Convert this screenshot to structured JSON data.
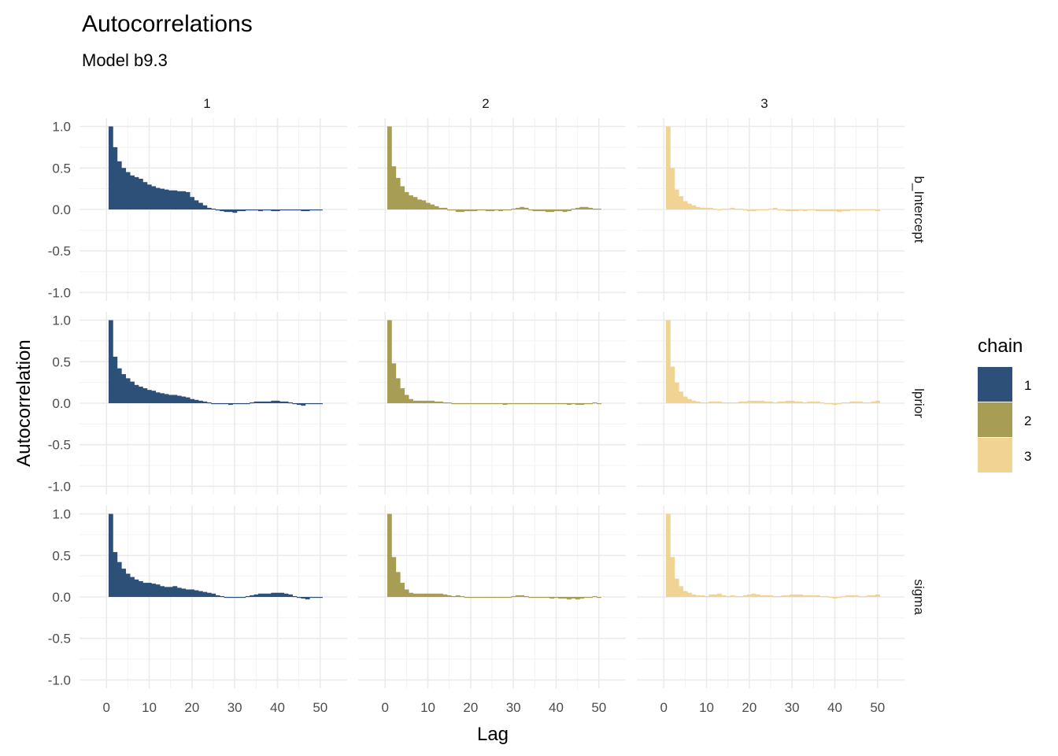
{
  "chart_data": {
    "type": "bar",
    "title": "Autocorrelations",
    "subtitle": "Model b9.3",
    "xlabel": "Lag",
    "ylabel": "Autocorrelation",
    "xlim": [
      0,
      50
    ],
    "ylim": [
      -1.0,
      1.0
    ],
    "x_ticks": [
      "0",
      "10",
      "20",
      "30",
      "40",
      "50"
    ],
    "y_ticks": [
      "1.0",
      "0.5",
      "0.0",
      "-0.5",
      "-1.0"
    ],
    "grid": true,
    "facet_columns": [
      "1",
      "2",
      "3"
    ],
    "facet_rows": [
      "b_Intercept",
      "lprior",
      "sigma"
    ],
    "legend": {
      "title": "chain",
      "position": "right",
      "entries": [
        {
          "label": "1",
          "color": "#2c5077"
        },
        {
          "label": "2",
          "color": "#a79d55"
        },
        {
          "label": "3",
          "color": "#f1d394"
        }
      ]
    },
    "lags": [
      1,
      2,
      3,
      4,
      5,
      6,
      7,
      8,
      9,
      10,
      11,
      12,
      13,
      14,
      15,
      16,
      17,
      18,
      19,
      20,
      21,
      22,
      23,
      24,
      25,
      26,
      27,
      28,
      29,
      30,
      31,
      32,
      33,
      34,
      35,
      36,
      37,
      38,
      39,
      40,
      41,
      42,
      43,
      44,
      45,
      46,
      47,
      48,
      49,
      50
    ],
    "panels": [
      {
        "row": "b_Intercept",
        "chain": "1",
        "values": [
          1.0,
          0.75,
          0.58,
          0.5,
          0.45,
          0.41,
          0.39,
          0.37,
          0.33,
          0.3,
          0.28,
          0.26,
          0.25,
          0.24,
          0.23,
          0.23,
          0.22,
          0.22,
          0.21,
          0.15,
          0.11,
          0.08,
          0.05,
          0.02,
          0.01,
          -0.01,
          -0.02,
          -0.03,
          -0.03,
          -0.04,
          -0.02,
          -0.02,
          -0.01,
          -0.01,
          -0.01,
          -0.02,
          -0.01,
          -0.01,
          -0.02,
          -0.02,
          -0.01,
          -0.01,
          -0.01,
          -0.01,
          -0.01,
          -0.02,
          -0.02,
          -0.01,
          -0.01,
          -0.01
        ]
      },
      {
        "row": "b_Intercept",
        "chain": "2",
        "values": [
          1.0,
          0.52,
          0.38,
          0.28,
          0.21,
          0.17,
          0.15,
          0.12,
          0.11,
          0.08,
          0.06,
          0.04,
          0.02,
          0.02,
          0.0,
          -0.01,
          -0.03,
          -0.03,
          -0.02,
          -0.02,
          -0.02,
          -0.01,
          -0.01,
          -0.02,
          -0.02,
          -0.01,
          -0.02,
          -0.01,
          -0.01,
          0.01,
          0.02,
          0.03,
          0.02,
          -0.01,
          -0.02,
          -0.02,
          -0.02,
          -0.03,
          -0.03,
          -0.02,
          -0.02,
          -0.03,
          -0.02,
          0.01,
          0.02,
          0.03,
          0.03,
          0.02,
          0.01,
          0.01
        ]
      },
      {
        "row": "b_Intercept",
        "chain": "3",
        "values": [
          1.0,
          0.5,
          0.24,
          0.16,
          0.1,
          0.07,
          0.05,
          0.03,
          0.02,
          0.02,
          0.02,
          0.01,
          0.0,
          0.01,
          0.01,
          0.02,
          0.01,
          0.01,
          -0.01,
          -0.02,
          -0.02,
          -0.01,
          -0.01,
          -0.01,
          0.01,
          0.02,
          0.0,
          -0.01,
          -0.02,
          -0.02,
          -0.02,
          -0.01,
          -0.02,
          -0.01,
          -0.01,
          -0.02,
          -0.02,
          -0.02,
          -0.02,
          -0.02,
          -0.03,
          -0.02,
          -0.02,
          -0.01,
          -0.01,
          -0.01,
          -0.01,
          -0.01,
          -0.01,
          -0.02
        ]
      },
      {
        "row": "lprior",
        "chain": "1",
        "values": [
          1.0,
          0.56,
          0.42,
          0.35,
          0.3,
          0.26,
          0.22,
          0.2,
          0.18,
          0.16,
          0.15,
          0.13,
          0.12,
          0.11,
          0.1,
          0.1,
          0.09,
          0.08,
          0.07,
          0.05,
          0.04,
          0.03,
          0.02,
          0.01,
          0.0,
          -0.01,
          -0.01,
          -0.01,
          -0.02,
          -0.01,
          -0.01,
          -0.01,
          0.0,
          0.01,
          0.02,
          0.02,
          0.02,
          0.02,
          0.03,
          0.03,
          0.02,
          0.02,
          0.01,
          0.0,
          -0.02,
          -0.03,
          -0.01,
          0.0,
          0.0,
          -0.01
        ]
      },
      {
        "row": "lprior",
        "chain": "2",
        "values": [
          1.0,
          0.48,
          0.3,
          0.18,
          0.1,
          0.05,
          0.03,
          0.03,
          0.03,
          0.03,
          0.03,
          0.02,
          0.02,
          0.01,
          0.01,
          0.0,
          0.0,
          -0.01,
          -0.01,
          -0.01,
          -0.01,
          0.0,
          -0.01,
          -0.01,
          -0.01,
          -0.01,
          -0.01,
          -0.02,
          -0.01,
          -0.01,
          0.0,
          -0.01,
          -0.01,
          -0.01,
          0.0,
          -0.01,
          -0.01,
          -0.01,
          -0.01,
          -0.01,
          -0.01,
          -0.01,
          -0.02,
          -0.01,
          -0.02,
          -0.02,
          -0.01,
          0.0,
          0.01,
          0.0
        ]
      },
      {
        "row": "lprior",
        "chain": "3",
        "values": [
          1.0,
          0.44,
          0.25,
          0.14,
          0.08,
          0.05,
          0.03,
          0.02,
          0.01,
          0.01,
          0.02,
          0.02,
          0.02,
          0.01,
          0.01,
          0.01,
          0.01,
          0.02,
          0.02,
          0.03,
          0.03,
          0.03,
          0.03,
          0.02,
          0.02,
          0.01,
          0.02,
          0.02,
          0.03,
          0.03,
          0.02,
          0.02,
          0.01,
          0.02,
          0.02,
          0.02,
          0.01,
          0.0,
          -0.01,
          -0.02,
          -0.01,
          0.01,
          0.01,
          0.02,
          0.02,
          0.02,
          0.01,
          0.01,
          0.02,
          0.03
        ]
      },
      {
        "row": "sigma",
        "chain": "1",
        "values": [
          1.0,
          0.54,
          0.42,
          0.34,
          0.28,
          0.24,
          0.21,
          0.19,
          0.17,
          0.17,
          0.16,
          0.15,
          0.13,
          0.12,
          0.12,
          0.13,
          0.11,
          0.1,
          0.09,
          0.09,
          0.08,
          0.07,
          0.06,
          0.05,
          0.04,
          0.02,
          0.01,
          0.0,
          -0.01,
          -0.01,
          -0.01,
          0.0,
          0.01,
          0.02,
          0.03,
          0.04,
          0.04,
          0.04,
          0.05,
          0.05,
          0.05,
          0.04,
          0.03,
          0.01,
          -0.01,
          -0.02,
          -0.03,
          -0.01,
          0.0,
          0.0
        ]
      },
      {
        "row": "sigma",
        "chain": "2",
        "values": [
          1.0,
          0.48,
          0.3,
          0.17,
          0.09,
          0.05,
          0.04,
          0.04,
          0.04,
          0.04,
          0.04,
          0.04,
          0.04,
          0.03,
          0.02,
          0.01,
          0.02,
          0.01,
          0.0,
          0.0,
          0.0,
          -0.01,
          0.0,
          -0.01,
          0.0,
          0.0,
          -0.01,
          -0.01,
          0.0,
          0.01,
          0.02,
          0.02,
          0.01,
          0.0,
          -0.01,
          -0.01,
          -0.01,
          -0.01,
          -0.02,
          -0.01,
          -0.02,
          -0.02,
          -0.03,
          -0.02,
          -0.03,
          -0.02,
          -0.01,
          0.0,
          0.01,
          0.0
        ]
      },
      {
        "row": "sigma",
        "chain": "3",
        "values": [
          1.0,
          0.48,
          0.22,
          0.13,
          0.07,
          0.05,
          0.03,
          0.02,
          0.02,
          0.01,
          0.03,
          0.03,
          0.04,
          0.02,
          0.01,
          0.02,
          0.01,
          0.01,
          0.02,
          0.03,
          0.04,
          0.03,
          0.02,
          0.02,
          0.02,
          0.01,
          0.01,
          0.02,
          0.02,
          0.03,
          0.03,
          0.03,
          0.02,
          0.02,
          0.02,
          0.02,
          0.01,
          0.01,
          -0.01,
          -0.02,
          -0.01,
          0.01,
          0.02,
          0.02,
          0.02,
          0.01,
          0.01,
          0.02,
          0.02,
          0.03
        ]
      }
    ]
  }
}
